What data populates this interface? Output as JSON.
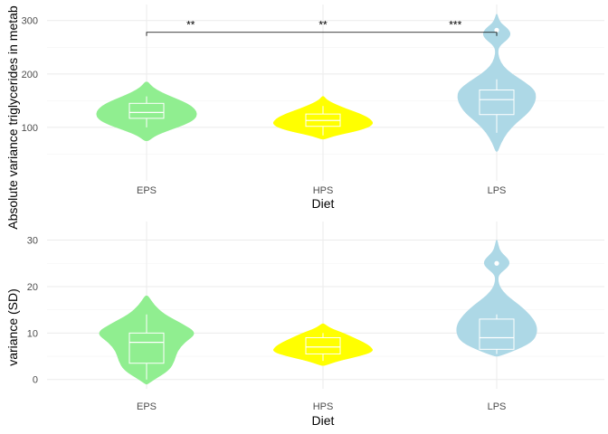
{
  "chart_data": [
    {
      "type": "violin",
      "title": "",
      "xlabel": "Diet",
      "ylabel": "Absolute variance triglycerides in metab",
      "ylim": [
        0,
        330
      ],
      "yticks": [
        100,
        200,
        300
      ],
      "yticklabels": [
        "100",
        "200",
        "300"
      ],
      "grid": true,
      "legend": "none",
      "categories": [
        "EPS",
        "HPS",
        "LPS"
      ],
      "colors": [
        "#90ee90",
        "#ffff00",
        "#add8e6"
      ],
      "groups": [
        {
          "name": "EPS",
          "box": {
            "min": 100,
            "q1": 117,
            "median": 128,
            "q3": 145,
            "max": 158
          },
          "outliers": [],
          "violin": {
            "y": [
              75,
              85,
              95,
              105,
              115,
              125,
              135,
              145,
              155,
              165,
              175,
              185
            ],
            "width": [
              0.04,
              0.18,
              0.45,
              0.75,
              0.95,
              1.0,
              0.95,
              0.8,
              0.55,
              0.3,
              0.12,
              0.03
            ]
          }
        },
        {
          "name": "HPS",
          "box": {
            "min": 85,
            "q1": 102,
            "median": 113,
            "q3": 125,
            "max": 140
          },
          "outliers": [],
          "violin": {
            "y": [
              78,
              85,
              95,
              105,
              115,
              125,
              135,
              145,
              152,
              158
            ],
            "width": [
              0.03,
              0.25,
              0.75,
              1.0,
              0.95,
              0.75,
              0.45,
              0.2,
              0.07,
              0.02
            ]
          }
        },
        {
          "name": "LPS",
          "box": {
            "min": 90,
            "q1": 124,
            "median": 152,
            "q3": 170,
            "max": 190
          },
          "outliers": [
            282
          ],
          "violin": {
            "y": [
              55,
              70,
              90,
              110,
              125,
              140,
              155,
              170,
              185,
              200,
              215,
              230,
              245,
              255,
              265,
              275,
              285,
              295,
              305,
              312
            ],
            "width": [
              0.02,
              0.08,
              0.2,
              0.4,
              0.6,
              0.72,
              0.78,
              0.75,
              0.55,
              0.3,
              0.12,
              0.04,
              0.02,
              0.08,
              0.22,
              0.28,
              0.22,
              0.08,
              0.03,
              0.01
            ]
          }
        }
      ],
      "significance": {
        "bracket_y": 278,
        "from": "EPS",
        "to": "LPS",
        "labels": [
          {
            "text": "**",
            "x": 0.25
          },
          {
            "text": "**",
            "x": 1.0
          },
          {
            "text": "***",
            "x": 1.75
          }
        ]
      }
    },
    {
      "type": "violin",
      "title": "",
      "xlabel": "Diet",
      "ylabel": "variance (SD)",
      "ylim": [
        -2,
        34
      ],
      "yticks": [
        0,
        10,
        20,
        30
      ],
      "yticklabels": [
        "0",
        "10",
        "20",
        "30"
      ],
      "grid": true,
      "legend": "none",
      "categories": [
        "EPS",
        "HPS",
        "LPS"
      ],
      "colors": [
        "#90ee90",
        "#ffff00",
        "#add8e6"
      ],
      "groups": [
        {
          "name": "EPS",
          "box": {
            "min": 0,
            "q1": 3.5,
            "median": 8,
            "q3": 10,
            "max": 14
          },
          "outliers": [],
          "violin": {
            "y": [
              -1,
              0,
              2,
              4,
              6,
              8,
              10,
              12,
              14,
              16,
              18
            ],
            "width": [
              0.02,
              0.15,
              0.45,
              0.55,
              0.6,
              0.75,
              1.0,
              0.7,
              0.35,
              0.15,
              0.03
            ]
          }
        },
        {
          "name": "HPS",
          "box": {
            "min": 4,
            "q1": 5.5,
            "median": 7,
            "q3": 9,
            "max": 10
          },
          "outliers": [],
          "violin": {
            "y": [
              3,
              4,
              5,
              6,
              7,
              8,
              9,
              10,
              11,
              12
            ],
            "width": [
              0.03,
              0.3,
              0.7,
              1.0,
              0.95,
              0.8,
              0.6,
              0.4,
              0.15,
              0.02
            ]
          }
        },
        {
          "name": "LPS",
          "box": {
            "min": 5.5,
            "q1": 6.5,
            "median": 9,
            "q3": 13,
            "max": 14
          },
          "outliers": [
            25
          ],
          "violin": {
            "y": [
              5,
              6,
              8,
              10,
              12,
              14,
              16,
              18,
              20,
              22,
              23,
              24,
              25,
              26,
              27,
              28,
              30
            ],
            "width": [
              0.03,
              0.3,
              0.7,
              0.8,
              0.78,
              0.65,
              0.45,
              0.2,
              0.05,
              0.02,
              0.08,
              0.2,
              0.26,
              0.22,
              0.12,
              0.05,
              0.01
            ]
          }
        }
      ]
    }
  ]
}
